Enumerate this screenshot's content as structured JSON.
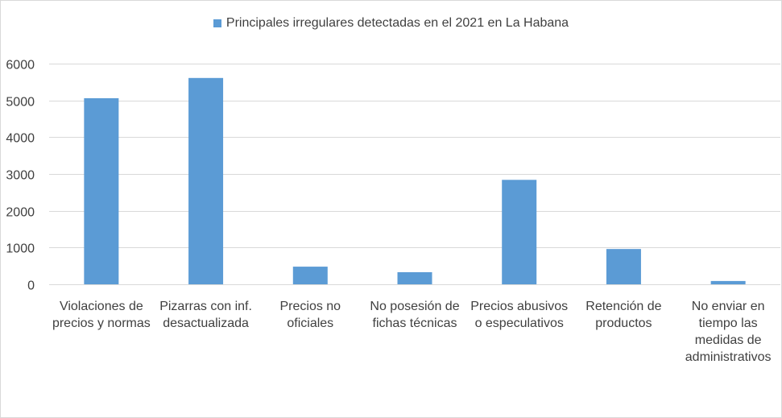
{
  "chart_data": {
    "type": "bar",
    "title": "",
    "xlabel": "",
    "ylabel": "",
    "legend_position": "top",
    "grid": true,
    "ylim": [
      0,
      6000
    ],
    "yticks": [
      0,
      1000,
      2000,
      3000,
      4000,
      5000,
      6000
    ],
    "categories": [
      [
        "Violaciones de",
        "precios y normas"
      ],
      [
        "Pizarras con inf.",
        "desactualizada"
      ],
      [
        "Precios no",
        "oficiales"
      ],
      [
        "No posesión de",
        "fichas técnicas"
      ],
      [
        "Precios abusivos",
        "o especulativos"
      ],
      [
        "Retención de",
        "productos"
      ],
      [
        "No enviar en",
        "tiempo las",
        "medidas de",
        "administrativos"
      ]
    ],
    "series": [
      {
        "name": "Principales irregulares detectadas en el 2021 en La Habana",
        "color": "#5b9bd5",
        "values": [
          5060,
          5610,
          480,
          330,
          2840,
          960,
          90
        ]
      }
    ]
  }
}
